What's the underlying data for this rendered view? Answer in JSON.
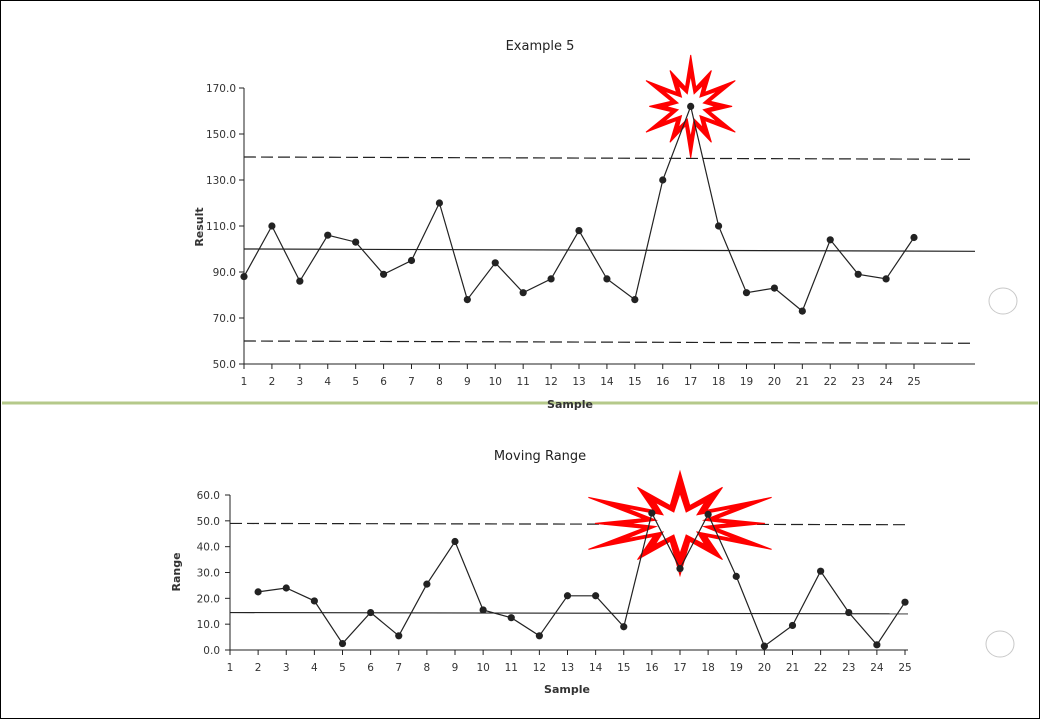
{
  "chart_data": [
    {
      "type": "line",
      "title": "Example 5",
      "xlabel": "Sample",
      "ylabel": "Result",
      "x": [
        1,
        2,
        3,
        4,
        5,
        6,
        7,
        8,
        9,
        10,
        11,
        12,
        13,
        14,
        15,
        16,
        17,
        18,
        19,
        20,
        21,
        22,
        23,
        24,
        25
      ],
      "series": [
        {
          "values": [
            88,
            110,
            86,
            106,
            103,
            89,
            95,
            120,
            78,
            94,
            81,
            87,
            108,
            87,
            78,
            130,
            162,
            110,
            81,
            83,
            73,
            104,
            89,
            87,
            105
          ]
        }
      ],
      "reference_lines": [
        {
          "style": "solid",
          "value": 100,
          "end_value": 99
        },
        {
          "style": "dashed",
          "value": 140,
          "end_value": 139
        },
        {
          "style": "dashed",
          "value": 60,
          "end_value": 59
        }
      ],
      "highlight": {
        "x": 17,
        "marker": "red-starburst"
      },
      "ylim": [
        50,
        170
      ],
      "yticks": [
        "50.0",
        "70.0",
        "90.0",
        "110.0",
        "130.0",
        "150.0",
        "170.0"
      ],
      "xticks": [
        "1",
        "2",
        "3",
        "4",
        "5",
        "6",
        "7",
        "8",
        "9",
        "10",
        "11",
        "12",
        "13",
        "14",
        "15",
        "16",
        "17",
        "18",
        "19",
        "20",
        "21",
        "22",
        "23",
        "24",
        "25"
      ],
      "grid": false
    },
    {
      "type": "line",
      "title": "Moving Range",
      "xlabel": "Sample",
      "ylabel": "Range",
      "x": [
        2,
        3,
        4,
        5,
        6,
        7,
        8,
        9,
        10,
        11,
        12,
        13,
        14,
        15,
        16,
        17,
        18,
        19,
        20,
        21,
        22,
        23,
        24,
        25
      ],
      "series": [
        {
          "values": [
            22.5,
            24,
            19,
            2.5,
            14.5,
            5.5,
            25.5,
            42,
            15.5,
            12.5,
            5.5,
            21,
            21,
            9,
            53,
            31.5,
            52.5,
            28.5,
            1.5,
            9.5,
            30.5,
            14.5,
            2,
            18.5
          ]
        }
      ],
      "reference_lines": [
        {
          "style": "solid",
          "value": 14.5,
          "end_value": 14
        },
        {
          "style": "dashed",
          "value": 49,
          "end_value": 48.5
        }
      ],
      "highlight": {
        "x": 17,
        "marker": "red-starburst"
      },
      "ylim": [
        0,
        60
      ],
      "yticks": [
        "0.0",
        "10.0",
        "20.0",
        "30.0",
        "40.0",
        "50.0",
        "60.0"
      ],
      "xticks": [
        "1",
        "2",
        "3",
        "4",
        "5",
        "6",
        "7",
        "8",
        "9",
        "10",
        "11",
        "12",
        "13",
        "14",
        "15",
        "16",
        "17",
        "18",
        "19",
        "20",
        "21",
        "22",
        "23",
        "24",
        "25"
      ],
      "grid": false
    }
  ],
  "colors": {
    "divider": "#b5c98a",
    "starburst": "#ff0000",
    "ink": "#222222"
  }
}
